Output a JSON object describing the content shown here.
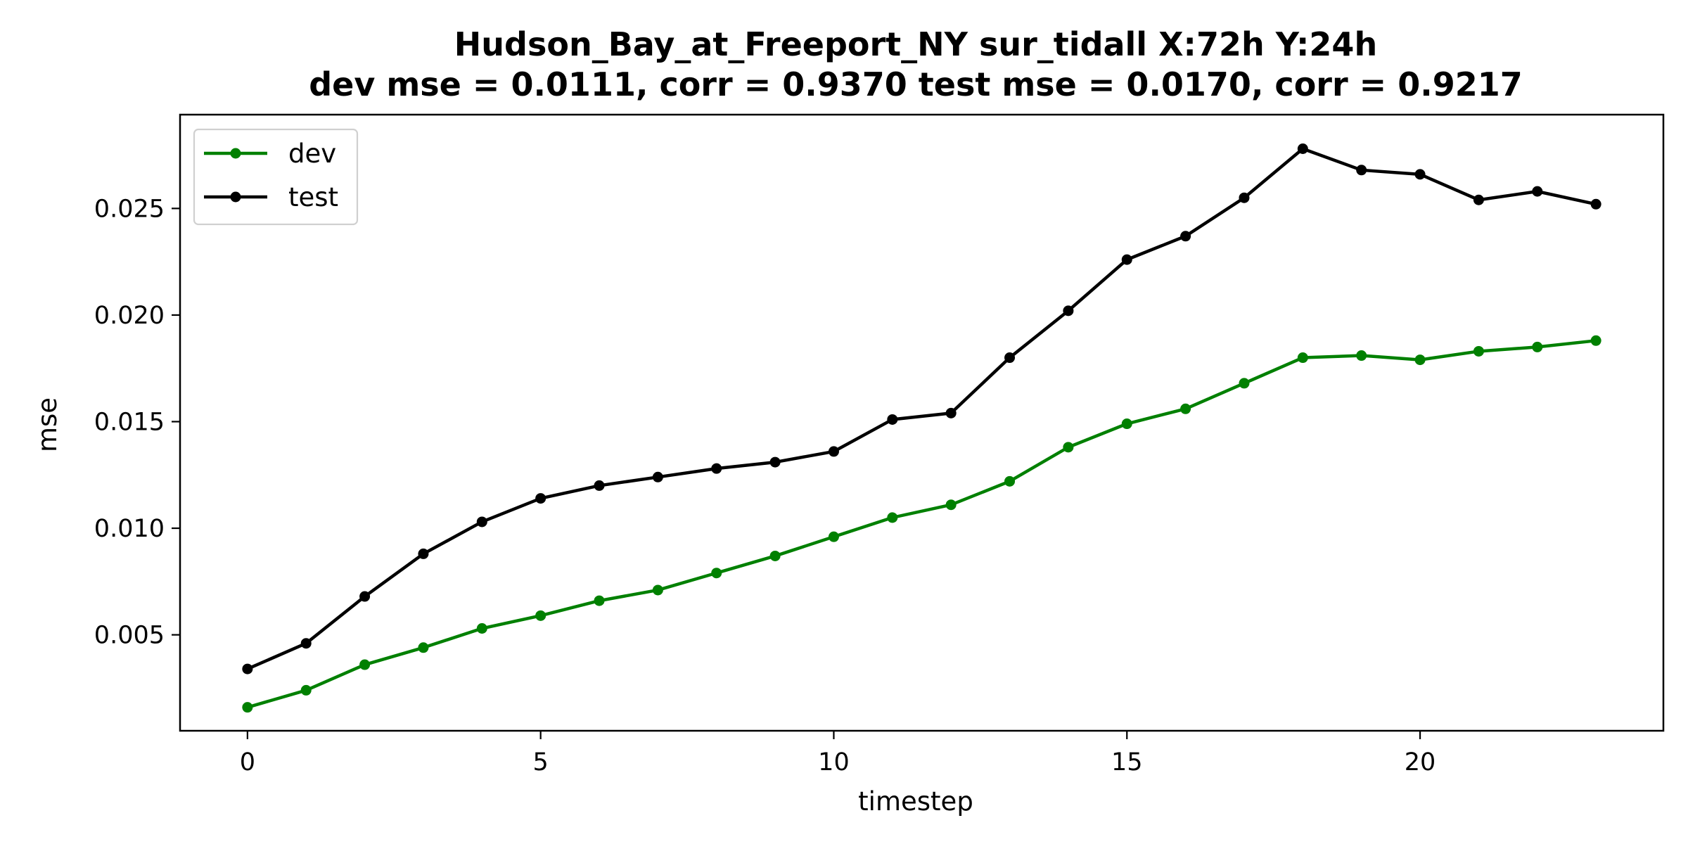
{
  "chart_data": {
    "type": "line",
    "title_line1": "Hudson_Bay_at_Freeport_NY   sur_tidall   X:72h   Y:24h",
    "title_line2": "dev mse = 0.0111, corr = 0.9370   test mse = 0.0170, corr = 0.9217",
    "xlabel": "timestep",
    "ylabel": "mse",
    "xlim": [
      -1.15,
      24.15
    ],
    "ylim": [
      0.0005,
      0.0294
    ],
    "xticks": [
      0,
      5,
      10,
      15,
      20
    ],
    "xtick_labels": [
      "0",
      "5",
      "10",
      "15",
      "20"
    ],
    "yticks": [
      0.005,
      0.01,
      0.015,
      0.02,
      0.025
    ],
    "ytick_labels": [
      "0.005",
      "0.010",
      "0.015",
      "0.020",
      "0.025"
    ],
    "grid": false,
    "legend_position": "upper-left",
    "x": [
      0,
      1,
      2,
      3,
      4,
      5,
      6,
      7,
      8,
      9,
      10,
      11,
      12,
      13,
      14,
      15,
      16,
      17,
      18,
      19,
      20,
      21,
      22,
      23
    ],
    "series": [
      {
        "name": "dev",
        "color": "#008000",
        "marker": "circle",
        "values": [
          0.0016,
          0.0024,
          0.0036,
          0.0044,
          0.0053,
          0.0059,
          0.0066,
          0.0071,
          0.0079,
          0.0087,
          0.0096,
          0.0105,
          0.0111,
          0.0122,
          0.0138,
          0.0149,
          0.0156,
          0.0168,
          0.018,
          0.0181,
          0.0179,
          0.0183,
          0.0185,
          0.0188
        ]
      },
      {
        "name": "test",
        "color": "#000000",
        "marker": "circle",
        "values": [
          0.0034,
          0.0046,
          0.0068,
          0.0088,
          0.0103,
          0.0114,
          0.012,
          0.0124,
          0.0128,
          0.0131,
          0.0136,
          0.0151,
          0.0154,
          0.018,
          0.0202,
          0.0226,
          0.0237,
          0.0255,
          0.0278,
          0.0268,
          0.0266,
          0.0254,
          0.0258,
          0.0252
        ]
      }
    ]
  }
}
